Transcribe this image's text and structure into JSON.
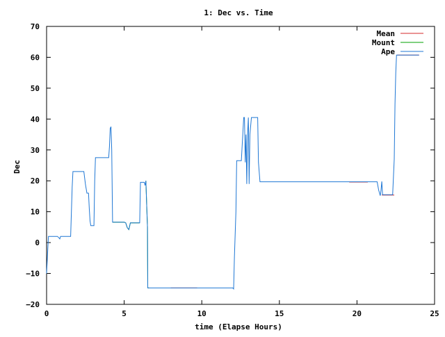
{
  "chart_data": {
    "type": "line",
    "title": "1: Dec vs. Time",
    "xlabel": "time (Elapse Hours)",
    "ylabel": "Dec",
    "xlim": [
      0,
      25
    ],
    "ylim": [
      -20,
      70
    ],
    "xticks": [
      0,
      5,
      10,
      15,
      20,
      25
    ],
    "yticks": [
      -20,
      -10,
      0,
      10,
      20,
      30,
      40,
      50,
      60,
      70
    ],
    "xtick_labels": [
      "0",
      "5",
      "10",
      "15",
      "20",
      "25"
    ],
    "ytick_labels": [
      "−20",
      "−10",
      "0",
      "10",
      "20",
      "30",
      "40",
      "50",
      "60",
      "70"
    ],
    "grid": false,
    "legend_position": "top-right",
    "series": [
      {
        "name": "Mean",
        "color": "#d62728",
        "segments": [
          [
            [
              8.0,
              -14.7
            ],
            [
              9.7,
              -14.7
            ]
          ],
          [
            [
              19.5,
              19.6
            ],
            [
              20.7,
              19.6
            ]
          ],
          [
            [
              21.6,
              15.4
            ],
            [
              22.4,
              15.4
            ]
          ],
          [
            [
              22.6,
              60.7
            ],
            [
              24.0,
              60.7
            ]
          ]
        ]
      },
      {
        "name": "Mount",
        "color": "#00a000",
        "segments": [
          [
            [
              4.25,
              6.6
            ],
            [
              5.0,
              6.6
            ],
            [
              5.1,
              6.4
            ],
            [
              5.2,
              4.8
            ],
            [
              5.3,
              4.2
            ],
            [
              5.4,
              6.4
            ],
            [
              6.0,
              6.4
            ]
          ],
          [
            [
              6.4,
              20.0
            ],
            [
              6.45,
              12.0
            ],
            [
              6.5,
              5.0
            ],
            [
              6.52,
              -14.7
            ],
            [
              6.6,
              -14.7
            ]
          ]
        ]
      },
      {
        "name": "Ape",
        "color": "#1f77d4",
        "points": [
          [
            0.0,
            -10.0
          ],
          [
            0.05,
            -5.0
          ],
          [
            0.1,
            0.0
          ],
          [
            0.12,
            2.0
          ],
          [
            0.7,
            2.0
          ],
          [
            0.8,
            1.5
          ],
          [
            0.85,
            1.2
          ],
          [
            0.9,
            2.0
          ],
          [
            1.55,
            2.0
          ],
          [
            1.6,
            10.0
          ],
          [
            1.65,
            18.0
          ],
          [
            1.7,
            23.0
          ],
          [
            2.4,
            23.0
          ],
          [
            2.5,
            19.0
          ],
          [
            2.6,
            16.0
          ],
          [
            2.7,
            16.0
          ],
          [
            2.75,
            11.0
          ],
          [
            2.8,
            7.0
          ],
          [
            2.85,
            5.5
          ],
          [
            3.05,
            5.5
          ],
          [
            3.1,
            20.0
          ],
          [
            3.15,
            27.5
          ],
          [
            4.0,
            27.5
          ],
          [
            4.05,
            31.0
          ],
          [
            4.1,
            37.0
          ],
          [
            4.15,
            37.5
          ],
          [
            4.2,
            30.0
          ],
          [
            4.25,
            6.6
          ],
          [
            5.0,
            6.6
          ],
          [
            5.1,
            6.4
          ],
          [
            5.2,
            4.8
          ],
          [
            5.3,
            4.2
          ],
          [
            5.4,
            6.4
          ],
          [
            6.0,
            6.4
          ],
          [
            6.05,
            19.5
          ],
          [
            6.3,
            19.5
          ],
          [
            6.35,
            18.5
          ],
          [
            6.4,
            20.0
          ],
          [
            6.45,
            12.0
          ],
          [
            6.5,
            5.0
          ],
          [
            6.52,
            -14.7
          ],
          [
            12.0,
            -14.7
          ],
          [
            12.05,
            -15.0
          ],
          [
            12.1,
            -5.0
          ],
          [
            12.2,
            10.0
          ],
          [
            12.25,
            26.5
          ],
          [
            12.55,
            26.5
          ],
          [
            12.7,
            40.5
          ],
          [
            12.75,
            40.5
          ],
          [
            12.8,
            26.0
          ],
          [
            12.85,
            35.0
          ],
          [
            12.9,
            19.0
          ],
          [
            12.95,
            35.0
          ],
          [
            13.0,
            40.5
          ],
          [
            13.05,
            19.0
          ],
          [
            13.1,
            35.0
          ],
          [
            13.2,
            40.5
          ],
          [
            13.6,
            40.5
          ],
          [
            13.65,
            26.0
          ],
          [
            13.75,
            19.7
          ],
          [
            21.3,
            19.7
          ],
          [
            21.4,
            17.0
          ],
          [
            21.5,
            15.2
          ],
          [
            21.55,
            17.0
          ],
          [
            21.6,
            19.8
          ],
          [
            21.65,
            15.5
          ],
          [
            22.3,
            15.5
          ],
          [
            22.4,
            27.0
          ],
          [
            22.45,
            45.0
          ],
          [
            22.5,
            55.0
          ],
          [
            22.55,
            60.7
          ],
          [
            24.0,
            60.7
          ]
        ]
      }
    ]
  }
}
